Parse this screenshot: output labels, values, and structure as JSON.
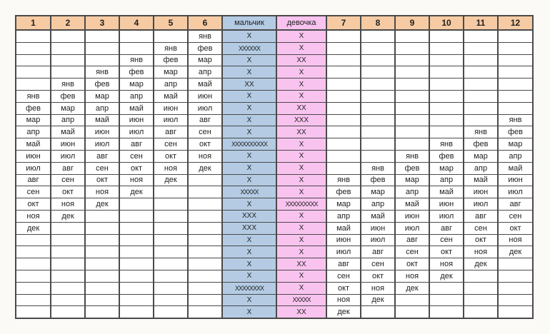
{
  "table": {
    "description_labels": {
      "boy_column": "мальчик",
      "girl_column": "девочка"
    },
    "column_headers": [
      "1",
      "2",
      "3",
      "4",
      "5",
      "6",
      "мальчик",
      "девочка",
      "7",
      "8",
      "9",
      "10",
      "11",
      "12"
    ],
    "boy_column_index": 6,
    "girl_column_index": 7,
    "rows": [
      [
        "",
        "",
        "",
        "",
        "",
        "янв",
        "X",
        "X",
        "",
        "",
        "",
        "",
        "",
        ""
      ],
      [
        "",
        "",
        "",
        "",
        "янв",
        "фев",
        "XXXXXX",
        "X",
        "",
        "",
        "",
        "",
        "",
        ""
      ],
      [
        "",
        "",
        "",
        "янв",
        "фев",
        "мар",
        "X",
        "XX",
        "",
        "",
        "",
        "",
        "",
        ""
      ],
      [
        "",
        "",
        "янв",
        "фев",
        "мар",
        "апр",
        "X",
        "X",
        "",
        "",
        "",
        "",
        "",
        ""
      ],
      [
        "",
        "янв",
        "фев",
        "мар",
        "апр",
        "май",
        "XX",
        "X",
        "",
        "",
        "",
        "",
        "",
        ""
      ],
      [
        "янв",
        "фев",
        "мар",
        "апр",
        "май",
        "июн",
        "X",
        "X",
        "",
        "",
        "",
        "",
        "",
        ""
      ],
      [
        "фев",
        "мар",
        "апр",
        "май",
        "июн",
        "июл",
        "X",
        "XX",
        "",
        "",
        "",
        "",
        "",
        ""
      ],
      [
        "мар",
        "апр",
        "май",
        "июн",
        "июл",
        "авг",
        "X",
        "XXX",
        "",
        "",
        "",
        "",
        "",
        "янв"
      ],
      [
        "апр",
        "май",
        "июн",
        "июл",
        "авг",
        "сен",
        "X",
        "XX",
        "",
        "",
        "",
        "",
        "янв",
        "фев"
      ],
      [
        "май",
        "июн",
        "июл",
        "авг",
        "сен",
        "окт",
        "XXXXXXXXXX",
        "X",
        "",
        "",
        "",
        "янв",
        "фев",
        "мар"
      ],
      [
        "июн",
        "июл",
        "авг",
        "сен",
        "окт",
        "ноя",
        "X",
        "X",
        "",
        "",
        "янв",
        "фев",
        "мар",
        "апр"
      ],
      [
        "июл",
        "авг",
        "сен",
        "окт",
        "ноя",
        "дек",
        "X",
        "X",
        "",
        "янв",
        "фев",
        "мар",
        "апр",
        "май"
      ],
      [
        "авг",
        "сен",
        "окт",
        "ноя",
        "дек",
        "",
        "X",
        "X",
        "янв",
        "фев",
        "мар",
        "апр",
        "май",
        "июн"
      ],
      [
        "сен",
        "окт",
        "ноя",
        "дек",
        "",
        "",
        "XXXXX",
        "X",
        "фев",
        "мар",
        "апр",
        "май",
        "июн",
        "июл"
      ],
      [
        "окт",
        "ноя",
        "дек",
        "",
        "",
        "",
        "X",
        "XXXXXXXXX",
        "мар",
        "апр",
        "май",
        "июн",
        "июл",
        "авг"
      ],
      [
        "ноя",
        "дек",
        "",
        "",
        "",
        "",
        "XXX",
        "X",
        "апр",
        "май",
        "июн",
        "июл",
        "авг",
        "сен"
      ],
      [
        "дек",
        "",
        "",
        "",
        "",
        "",
        "XXX",
        "X",
        "май",
        "июн",
        "июл",
        "авг",
        "сен",
        "окт"
      ],
      [
        "",
        "",
        "",
        "",
        "",
        "",
        "X",
        "X",
        "июн",
        "июл",
        "авг",
        "сен",
        "окт",
        "ноя"
      ],
      [
        "",
        "",
        "",
        "",
        "",
        "",
        "X",
        "X",
        "июл",
        "авг",
        "сен",
        "окт",
        "ноя",
        "дек"
      ],
      [
        "",
        "",
        "",
        "",
        "",
        "",
        "X",
        "XX",
        "авг",
        "сен",
        "окт",
        "ноя",
        "дек",
        ""
      ],
      [
        "",
        "",
        "",
        "",
        "",
        "",
        "X",
        "X",
        "сен",
        "окт",
        "ноя",
        "дек",
        "",
        ""
      ],
      [
        "",
        "",
        "",
        "",
        "",
        "",
        "XXXXXXXX",
        "X",
        "окт",
        "ноя",
        "дек",
        "",
        "",
        ""
      ],
      [
        "",
        "",
        "",
        "",
        "",
        "",
        "X",
        "XXXXX",
        "ноя",
        "дек",
        "",
        "",
        "",
        ""
      ],
      [
        "",
        "",
        "",
        "",
        "",
        "",
        "X",
        "XX",
        "дек",
        "",
        "",
        "",
        "",
        ""
      ]
    ],
    "colors": {
      "page_bg": "#fbfaf7",
      "header_bg": "#f6cba4",
      "boy_bg": "#b4cbe3",
      "girl_bg": "#f9c3ef",
      "grid_line": "#4a4a4a",
      "text": "#1f1f1f"
    }
  }
}
